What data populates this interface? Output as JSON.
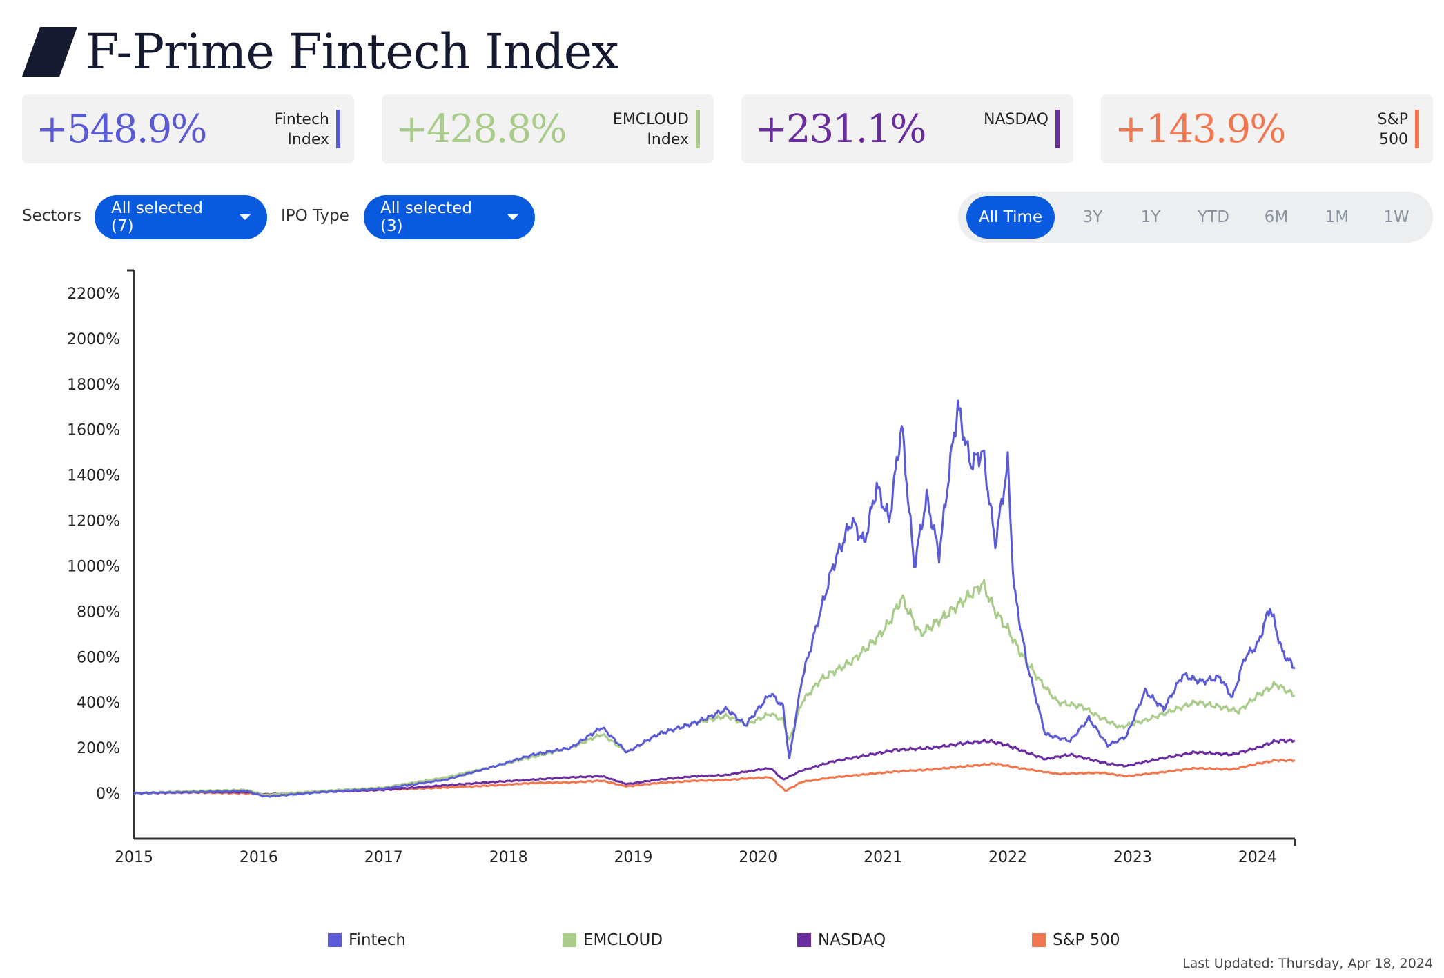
{
  "header": {
    "title": "F-Prime Fintech Index",
    "logo_icon": "slash-logo-icon"
  },
  "stats": [
    {
      "value": "+548.9%",
      "label": "Fintech\nIndex",
      "color": "#5b5bd6"
    },
    {
      "value": "+428.8%",
      "label": "EMCLOUD\nIndex",
      "color": "#a9cc8a"
    },
    {
      "value": "+231.1%",
      "label": "NASDAQ",
      "color": "#6a2c9e"
    },
    {
      "value": "+143.9%",
      "label": "S&P\n500",
      "color": "#f2774f"
    }
  ],
  "filters": {
    "sectors_label": "Sectors",
    "sectors_value": "All selected (7)",
    "ipo_label": "IPO Type",
    "ipo_value": "All selected (3)"
  },
  "ranges": [
    "All Time",
    "3Y",
    "1Y",
    "YTD",
    "6M",
    "1M",
    "1W"
  ],
  "active_range": "All Time",
  "last_updated": "Last Updated: Thursday, Apr 18, 2024",
  "chart_data": {
    "type": "line",
    "x_axis": {
      "type": "year",
      "min": 2015,
      "max": 2024.3,
      "ticks": [
        "2015",
        "2016",
        "2017",
        "2018",
        "2019",
        "2020",
        "2021",
        "2022",
        "2023",
        "2024"
      ]
    },
    "y_axis": {
      "min": -200,
      "max": 2300,
      "ticks": [
        "0%",
        "200%",
        "400%",
        "600%",
        "800%",
        "1000%",
        "1200%",
        "1400%",
        "1600%",
        "1800%",
        "2000%",
        "2200%"
      ]
    },
    "grid": false,
    "legend_position": "bottom",
    "series": [
      {
        "name": "Fintech",
        "color": "#5b5bd6",
        "points": [
          [
            2015,
            0
          ],
          [
            2015.5,
            5
          ],
          [
            2015.9,
            10
          ],
          [
            2016.05,
            -15
          ],
          [
            2016.5,
            5
          ],
          [
            2017,
            20
          ],
          [
            2017.5,
            60
          ],
          [
            2017.9,
            120
          ],
          [
            2018.2,
            170
          ],
          [
            2018.5,
            200
          ],
          [
            2018.75,
            290
          ],
          [
            2018.95,
            180
          ],
          [
            2019.2,
            260
          ],
          [
            2019.5,
            310
          ],
          [
            2019.75,
            370
          ],
          [
            2019.9,
            300
          ],
          [
            2020.1,
            440
          ],
          [
            2020.2,
            380
          ],
          [
            2020.25,
            150
          ],
          [
            2020.35,
            500
          ],
          [
            2020.5,
            800
          ],
          [
            2020.6,
            1000
          ],
          [
            2020.75,
            1200
          ],
          [
            2020.85,
            1100
          ],
          [
            2020.95,
            1350
          ],
          [
            2021.05,
            1200
          ],
          [
            2021.15,
            1620
          ],
          [
            2021.25,
            1000
          ],
          [
            2021.35,
            1300
          ],
          [
            2021.45,
            1050
          ],
          [
            2021.55,
            1500
          ],
          [
            2021.6,
            1700
          ],
          [
            2021.7,
            1450
          ],
          [
            2021.8,
            1500
          ],
          [
            2021.9,
            1100
          ],
          [
            2022.0,
            1450
          ],
          [
            2022.05,
            900
          ],
          [
            2022.15,
            580
          ],
          [
            2022.3,
            260
          ],
          [
            2022.5,
            230
          ],
          [
            2022.65,
            330
          ],
          [
            2022.8,
            210
          ],
          [
            2022.95,
            250
          ],
          [
            2023.1,
            450
          ],
          [
            2023.25,
            370
          ],
          [
            2023.4,
            520
          ],
          [
            2023.55,
            490
          ],
          [
            2023.7,
            510
          ],
          [
            2023.8,
            420
          ],
          [
            2023.9,
            600
          ],
          [
            2024.0,
            650
          ],
          [
            2024.1,
            820
          ],
          [
            2024.2,
            620
          ],
          [
            2024.3,
            549
          ]
        ]
      },
      {
        "name": "EMCLOUD",
        "color": "#a9cc8a",
        "points": [
          [
            2015,
            0
          ],
          [
            2015.5,
            10
          ],
          [
            2015.9,
            15
          ],
          [
            2016.05,
            -8
          ],
          [
            2016.5,
            10
          ],
          [
            2017,
            25
          ],
          [
            2017.5,
            70
          ],
          [
            2017.9,
            120
          ],
          [
            2018.2,
            160
          ],
          [
            2018.5,
            200
          ],
          [
            2018.75,
            260
          ],
          [
            2018.95,
            180
          ],
          [
            2019.2,
            260
          ],
          [
            2019.5,
            310
          ],
          [
            2019.75,
            340
          ],
          [
            2019.9,
            300
          ],
          [
            2020.1,
            350
          ],
          [
            2020.2,
            320
          ],
          [
            2020.25,
            230
          ],
          [
            2020.35,
            400
          ],
          [
            2020.5,
            500
          ],
          [
            2020.75,
            580
          ],
          [
            2020.95,
            680
          ],
          [
            2021.05,
            750
          ],
          [
            2021.15,
            860
          ],
          [
            2021.3,
            700
          ],
          [
            2021.5,
            780
          ],
          [
            2021.65,
            850
          ],
          [
            2021.8,
            920
          ],
          [
            2021.9,
            800
          ],
          [
            2022.0,
            720
          ],
          [
            2022.1,
            620
          ],
          [
            2022.25,
            500
          ],
          [
            2022.4,
            400
          ],
          [
            2022.6,
            380
          ],
          [
            2022.75,
            330
          ],
          [
            2022.9,
            290
          ],
          [
            2023.1,
            320
          ],
          [
            2023.3,
            360
          ],
          [
            2023.5,
            400
          ],
          [
            2023.7,
            380
          ],
          [
            2023.85,
            360
          ],
          [
            2024.0,
            430
          ],
          [
            2024.15,
            480
          ],
          [
            2024.3,
            429
          ]
        ]
      },
      {
        "name": "NASDAQ",
        "color": "#6a2c9e",
        "points": [
          [
            2015,
            0
          ],
          [
            2015.5,
            5
          ],
          [
            2015.9,
            5
          ],
          [
            2016.05,
            -5
          ],
          [
            2016.5,
            5
          ],
          [
            2017,
            15
          ],
          [
            2017.5,
            35
          ],
          [
            2017.9,
            50
          ],
          [
            2018.2,
            60
          ],
          [
            2018.5,
            70
          ],
          [
            2018.75,
            75
          ],
          [
            2018.95,
            40
          ],
          [
            2019.2,
            60
          ],
          [
            2019.5,
            75
          ],
          [
            2019.75,
            80
          ],
          [
            2019.9,
            95
          ],
          [
            2020.1,
            110
          ],
          [
            2020.2,
            60
          ],
          [
            2020.35,
            100
          ],
          [
            2020.6,
            140
          ],
          [
            2020.9,
            170
          ],
          [
            2021.1,
            190
          ],
          [
            2021.4,
            200
          ],
          [
            2021.65,
            220
          ],
          [
            2021.85,
            230
          ],
          [
            2022.0,
            210
          ],
          [
            2022.3,
            150
          ],
          [
            2022.5,
            170
          ],
          [
            2022.8,
            130
          ],
          [
            2022.95,
            120
          ],
          [
            2023.2,
            150
          ],
          [
            2023.5,
            180
          ],
          [
            2023.8,
            170
          ],
          [
            2024.0,
            200
          ],
          [
            2024.15,
            230
          ],
          [
            2024.3,
            231
          ]
        ]
      },
      {
        "name": "S&P 500",
        "color": "#f2774f",
        "points": [
          [
            2015,
            0
          ],
          [
            2015.5,
            3
          ],
          [
            2015.9,
            0
          ],
          [
            2016.05,
            -5
          ],
          [
            2016.5,
            5
          ],
          [
            2017,
            15
          ],
          [
            2017.5,
            25
          ],
          [
            2017.9,
            35
          ],
          [
            2018.2,
            45
          ],
          [
            2018.5,
            48
          ],
          [
            2018.75,
            55
          ],
          [
            2018.95,
            30
          ],
          [
            2019.2,
            45
          ],
          [
            2019.5,
            55
          ],
          [
            2019.75,
            58
          ],
          [
            2019.9,
            65
          ],
          [
            2020.1,
            70
          ],
          [
            2020.22,
            10
          ],
          [
            2020.35,
            50
          ],
          [
            2020.6,
            70
          ],
          [
            2020.9,
            85
          ],
          [
            2021.1,
            95
          ],
          [
            2021.4,
            105
          ],
          [
            2021.65,
            118
          ],
          [
            2021.9,
            130
          ],
          [
            2022.1,
            110
          ],
          [
            2022.4,
            85
          ],
          [
            2022.75,
            90
          ],
          [
            2022.95,
            75
          ],
          [
            2023.2,
            90
          ],
          [
            2023.5,
            110
          ],
          [
            2023.8,
            105
          ],
          [
            2024.0,
            130
          ],
          [
            2024.15,
            145
          ],
          [
            2024.3,
            144
          ]
        ]
      }
    ]
  }
}
